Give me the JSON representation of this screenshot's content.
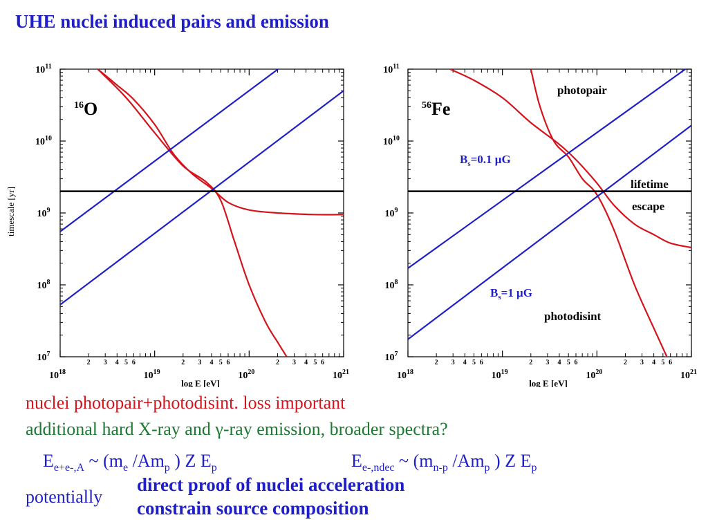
{
  "title": "UHE nuclei induced pairs and emission",
  "colors": {
    "title": "#1f1fc8",
    "loss_curves": "#d4141c",
    "timescale_lines": "#1f1fc8",
    "lifetime_line": "#000000",
    "note_red": "#d4141c",
    "note_green": "#1e7a32",
    "note_blue": "#1f1fc8"
  },
  "chart_data": [
    {
      "type": "line",
      "nucleus": {
        "mass": "16",
        "symbol": "O"
      },
      "xlabel": "log E [eV]",
      "ylabel": "timescale [yr]",
      "x_scale": "log",
      "y_scale": "log",
      "xlim": [
        1e+18,
        1e+21
      ],
      "ylim": [
        10000000.0,
        100000000000.0
      ],
      "x_major_ticks": [
        {
          "base": "10",
          "exp": "18",
          "value": 1e+18
        },
        {
          "base": "10",
          "exp": "19",
          "value": 1e+19
        },
        {
          "base": "10",
          "exp": "20",
          "value": 1e+20
        },
        {
          "base": "10",
          "exp": "21",
          "value": 1e+21
        }
      ],
      "x_minor_tick_labels": [
        "2",
        "3",
        "4",
        "5",
        "6"
      ],
      "y_major_ticks": [
        {
          "base": "10",
          "exp": "7",
          "value": 10000000.0
        },
        {
          "base": "10",
          "exp": "8",
          "value": 100000000.0
        },
        {
          "base": "10",
          "exp": "9",
          "value": 1000000000.0
        },
        {
          "base": "10",
          "exp": "10",
          "value": 10000000000.0
        },
        {
          "base": "10",
          "exp": "11",
          "value": 100000000000.0
        }
      ],
      "series": [
        {
          "kind": "photopair",
          "color": "#d4141c",
          "x": [
            2.5e+18,
            4e+18,
            6e+18,
            1e+19,
            1.6e+19,
            2.5e+19,
            4e+19,
            6e+19,
            1e+20,
            2e+20,
            5e+20,
            1e+21
          ],
          "y": [
            100000000000.0,
            60000000000.0,
            38000000000.0,
            17000000000.0,
            6500000000.0,
            3500000000.0,
            2200000000.0,
            1400000000.0,
            1100000000.0,
            1000000000.0,
            950000000.0,
            950000000.0
          ]
        },
        {
          "kind": "photodisint",
          "color": "#d4141c",
          "x": [
            2.5e+18,
            5e+18,
            1e+19,
            2e+19,
            3.5e+19,
            5e+19,
            7e+19,
            1e+20,
            1.5e+20,
            2e+20,
            2.5e+20
          ],
          "y": [
            100000000000.0,
            40000000000.0,
            13000000000.0,
            4500000000.0,
            2700000000.0,
            1500000000.0,
            400000000.0,
            100000000.0,
            30000000.0,
            16000000.0,
            10000000.0
          ]
        },
        {
          "kind": "escape",
          "label": "",
          "color": "#1f1fc8",
          "x": [
            1e+18,
            1e+21
          ],
          "y": [
            550000000.0,
            480000000000.0
          ]
        },
        {
          "kind": "escape",
          "label": "",
          "color": "#1f1fc8",
          "x": [
            1e+18,
            1e+21
          ],
          "y": [
            53000000.0,
            50000000000.0
          ]
        },
        {
          "kind": "lifetime",
          "color": "#000000",
          "x": [
            1e+18,
            1e+21
          ],
          "y": [
            2000000000.0,
            2000000000.0
          ]
        }
      ],
      "annotations": []
    },
    {
      "type": "line",
      "nucleus": {
        "mass": "56",
        "symbol": "Fe"
      },
      "xlabel": "log E [eV]",
      "ylabel": "",
      "x_scale": "log",
      "y_scale": "log",
      "xlim": [
        1e+18,
        1e+21
      ],
      "ylim": [
        10000000.0,
        100000000000.0
      ],
      "x_major_ticks": [
        {
          "base": "10",
          "exp": "18",
          "value": 1e+18
        },
        {
          "base": "10",
          "exp": "19",
          "value": 1e+19
        },
        {
          "base": "10",
          "exp": "20",
          "value": 1e+20
        },
        {
          "base": "10",
          "exp": "21",
          "value": 1e+21
        }
      ],
      "x_minor_tick_labels": [
        "2",
        "3",
        "4",
        "5",
        "6"
      ],
      "y_major_ticks": [
        {
          "base": "10",
          "exp": "7",
          "value": 10000000.0
        },
        {
          "base": "10",
          "exp": "8",
          "value": 100000000.0
        },
        {
          "base": "10",
          "exp": "9",
          "value": 1000000000.0
        },
        {
          "base": "10",
          "exp": "10",
          "value": 10000000000.0
        },
        {
          "base": "10",
          "exp": "11",
          "value": 100000000000.0
        }
      ],
      "series": [
        {
          "kind": "photopair",
          "color": "#d4141c",
          "x": [
            2.8e+18,
            5e+18,
            1e+19,
            2e+19,
            4e+19,
            6e+19,
            1e+20,
            1.5e+20,
            2.5e+20,
            4e+20,
            6e+20,
            1e+21
          ],
          "y": [
            100000000000.0,
            70000000000.0,
            40000000000.0,
            18000000000.0,
            9000000000.0,
            5500000000.0,
            2600000000.0,
            1300000000.0,
            700000000.0,
            500000000.0,
            380000000.0,
            330000000.0
          ]
        },
        {
          "kind": "photodisint",
          "color": "#d4141c",
          "x": [
            2e+19,
            2.5e+19,
            3.5e+19,
            5e+19,
            7e+19,
            1e+20,
            1.5e+20,
            2.5e+20,
            4e+20,
            5.5e+20
          ],
          "y": [
            100000000000.0,
            30000000000.0,
            10000000000.0,
            6000000000.0,
            3000000000.0,
            1800000000.0,
            600000000.0,
            100000000.0,
            25000000.0,
            10000000.0
          ]
        },
        {
          "kind": "escape",
          "label": "B_s=0.1 μG",
          "color": "#1f1fc8",
          "x": [
            1e+18,
            1e+21
          ],
          "y": [
            170000000.0,
            115000000000.0
          ]
        },
        {
          "kind": "escape",
          "label": "B_s=1 μG",
          "color": "#1f1fc8",
          "x": [
            1e+18,
            1e+21
          ],
          "y": [
            17500000.0,
            16500000000.0
          ]
        },
        {
          "kind": "lifetime",
          "color": "#000000",
          "x": [
            1e+18,
            1e+21
          ],
          "y": [
            2000000000.0,
            2000000000.0
          ]
        }
      ],
      "annotations": [
        {
          "text": "photopair",
          "color": "#000000"
        },
        {
          "text": "photodisint",
          "color": "#000000"
        },
        {
          "text": "lifetime",
          "color": "#000000"
        },
        {
          "text": "escape",
          "color": "#000000"
        },
        {
          "B": "B",
          "sub": "s",
          "rest": "=0.1 μG",
          "color": "#1f1fc8"
        },
        {
          "B": "B",
          "sub": "s",
          "rest": "=1 μG",
          "color": "#1f1fc8"
        }
      ]
    }
  ],
  "notes": {
    "line1": "nuclei photopair+photodisint. loss important",
    "line2": "additional hard X-ray and γ-ray emission, broader spectra?",
    "eq1": {
      "E": "E",
      "E_sub": "e+e-,A",
      "tilde": " ~ (m",
      "me_sub": "e",
      "mid": " /Am",
      "mp_sub": "p",
      "tail": " ) Z E",
      "Ep_sub": "p"
    },
    "eq2": {
      "E": "E",
      "E_sub": "e-,ndec",
      "tilde": " ~ (m",
      "m_sub": "n-p",
      "mid": " /Am",
      "mp_sub": "p",
      "tail": " ) Z E",
      "Ep_sub": "p"
    },
    "potentially": "potentially",
    "bullet1": "direct proof of nuclei acceleration",
    "bullet2": "constrain source composition"
  }
}
